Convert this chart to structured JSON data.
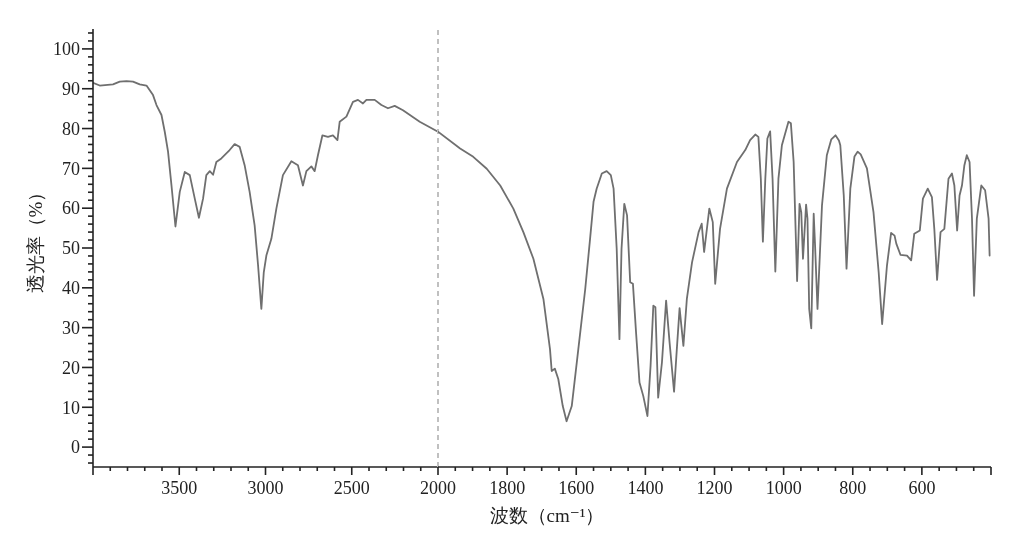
{
  "chart_data": [
    {
      "type": "line",
      "ylabel": "透光率（%）",
      "x": [
        4000,
        3961,
        3884,
        3845,
        3806,
        3768,
        3729,
        3690,
        3652,
        3632,
        3603,
        3584,
        3565,
        3545,
        3522,
        3497,
        3468,
        3439,
        3410,
        3386,
        3362,
        3343,
        3323,
        3304,
        3285,
        3256,
        3208,
        3179,
        3150,
        3121,
        3092,
        3063,
        3043,
        3024,
        3010,
        2995,
        2966,
        2937,
        2899,
        2850,
        2812,
        2783,
        2763,
        2734,
        2715,
        2696,
        2670,
        2638,
        2609,
        2583,
        2570,
        2531,
        2493,
        2464,
        2435,
        2415,
        2367,
        2328,
        2290,
        2251,
        2203,
        2106,
        2000
      ],
      "series": [
        {
          "color": "#6f6f6f",
          "values": [
            91.5,
            90.8,
            91.1,
            91.8,
            91.9,
            91.8,
            91.1,
            90.8,
            88.4,
            85.9,
            83.4,
            79.2,
            74.2,
            65.7,
            55.4,
            64.1,
            69.1,
            68.3,
            62.4,
            57.6,
            62.4,
            68.3,
            69.3,
            68.4,
            71.6,
            72.5,
            74.6,
            76.1,
            75.4,
            70.8,
            64.1,
            55.7,
            45.6,
            34.7,
            43.9,
            48.1,
            52.3,
            59.9,
            68.3,
            71.8,
            70.8,
            65.7,
            69.3,
            70.5,
            69.3,
            73.3,
            78.3,
            77.9,
            78.3,
            77.1,
            81.7,
            83.0,
            86.7,
            87.2,
            86.3,
            87.2,
            87.2,
            85.9,
            85.1,
            85.7,
            84.6,
            81.7,
            79.2
          ]
        }
      ],
      "xlim": [
        4000,
        2000
      ],
      "xticks": [
        {
          "value": 4000,
          "label": null
        },
        {
          "value": 3900,
          "label": null
        },
        {
          "value": 3800,
          "label": null
        },
        {
          "value": 3700,
          "label": null
        },
        {
          "value": 3600,
          "label": null
        },
        3500,
        {
          "value": 3400,
          "label": null
        },
        {
          "value": 3300,
          "label": null
        },
        {
          "value": 3200,
          "label": null
        },
        {
          "value": 3100,
          "label": null
        },
        3000,
        {
          "value": 2900,
          "label": null
        },
        {
          "value": 2800,
          "label": null
        },
        {
          "value": 2700,
          "label": null
        },
        {
          "value": 2600,
          "label": null
        },
        2500,
        {
          "value": 2400,
          "label": null
        },
        {
          "value": 2300,
          "label": null
        },
        {
          "value": 2200,
          "label": null
        },
        {
          "value": 2100,
          "label": null
        },
        2000
      ],
      "ylim": [
        -5,
        105
      ],
      "yticks": [
        {
          "value": -4,
          "label": null
        },
        {
          "value": -2,
          "label": null
        },
        0,
        {
          "value": 2,
          "label": null
        },
        {
          "value": 4,
          "label": null
        },
        {
          "value": 6,
          "label": null
        },
        {
          "value": 8,
          "label": null
        },
        10,
        {
          "value": 12,
          "label": null
        },
        {
          "value": 14,
          "label": null
        },
        {
          "value": 16,
          "label": null
        },
        {
          "value": 18,
          "label": null
        },
        20,
        {
          "value": 22,
          "label": null
        },
        {
          "value": 24,
          "label": null
        },
        {
          "value": 26,
          "label": null
        },
        {
          "value": 28,
          "label": null
        },
        30,
        {
          "value": 32,
          "label": null
        },
        {
          "value": 34,
          "label": null
        },
        {
          "value": 36,
          "label": null
        },
        {
          "value": 38,
          "label": null
        },
        40,
        {
          "value": 42,
          "label": null
        },
        {
          "value": 44,
          "label": null
        },
        {
          "value": 46,
          "label": null
        },
        {
          "value": 48,
          "label": null
        },
        50,
        {
          "value": 52,
          "label": null
        },
        {
          "value": 54,
          "label": null
        },
        {
          "value": 56,
          "label": null
        },
        {
          "value": 58,
          "label": null
        },
        60,
        {
          "value": 62,
          "label": null
        },
        {
          "value": 64,
          "label": null
        },
        {
          "value": 66,
          "label": null
        },
        {
          "value": 68,
          "label": null
        },
        70,
        {
          "value": 72,
          "label": null
        },
        {
          "value": 74,
          "label": null
        },
        {
          "value": 76,
          "label": null
        },
        {
          "value": 78,
          "label": null
        },
        80,
        {
          "value": 82,
          "label": null
        },
        {
          "value": 84,
          "label": null
        },
        {
          "value": 86,
          "label": null
        },
        {
          "value": 88,
          "label": null
        },
        90,
        {
          "value": 92,
          "label": null
        },
        {
          "value": 94,
          "label": null
        },
        {
          "value": 96,
          "label": null
        },
        {
          "value": 98,
          "label": null
        },
        100,
        {
          "value": 102,
          "label": null
        },
        {
          "value": 104,
          "label": null
        }
      ]
    },
    {
      "type": "line",
      "xlabel": "波数（cm⁻¹）",
      "tick_labels": "x",
      "x": [
        2000,
        1936,
        1898,
        1859,
        1820,
        1782,
        1753,
        1724,
        1695,
        1676,
        1671,
        1662,
        1652,
        1639,
        1628,
        1613,
        1594,
        1574,
        1560,
        1550,
        1541,
        1526,
        1512,
        1500,
        1492,
        1483,
        1475,
        1469,
        1461,
        1453,
        1444,
        1436,
        1427,
        1417,
        1406,
        1394,
        1385,
        1377,
        1371,
        1363,
        1352,
        1340,
        1330,
        1317,
        1309,
        1301,
        1290,
        1280,
        1265,
        1246,
        1237,
        1230,
        1215,
        1205,
        1198,
        1184,
        1164,
        1135,
        1111,
        1097,
        1082,
        1073,
        1066,
        1060,
        1053,
        1047,
        1039,
        1032,
        1024,
        1015,
        1005,
        986,
        979,
        971,
        961,
        954,
        949,
        944,
        935,
        931,
        926,
        920,
        913,
        909,
        902,
        889,
        875,
        862,
        850,
        840,
        836,
        826,
        818,
        807,
        795,
        786,
        777,
        759,
        740,
        725,
        715,
        701,
        689,
        679,
        674,
        662,
        643,
        631,
        622,
        606,
        597,
        583,
        571,
        564,
        556,
        546,
        535,
        523,
        513,
        506,
        498,
        491,
        484,
        477,
        470,
        462,
        455,
        449,
        441,
        428,
        417,
        407,
        404
      ],
      "series": [
        {
          "color": "#6f6f6f",
          "values": [
            79.2,
            75.0,
            72.9,
            69.9,
            65.7,
            59.9,
            54.0,
            47.3,
            37.2,
            24.6,
            19.1,
            19.7,
            17.1,
            10.3,
            6.5,
            10.3,
            24.6,
            39.7,
            52.3,
            61.6,
            64.9,
            68.7,
            69.3,
            68.3,
            64.9,
            49.8,
            27.1,
            49.8,
            61.1,
            58.2,
            41.4,
            41.0,
            28.8,
            16.2,
            12.8,
            7.8,
            20.4,
            35.5,
            35.1,
            12.4,
            21.3,
            36.8,
            26.3,
            13.9,
            24.6,
            34.9,
            25.4,
            37.2,
            46.4,
            54.0,
            56.1,
            49.0,
            59.9,
            56.5,
            41.0,
            54.8,
            64.9,
            71.6,
            74.6,
            77.1,
            78.5,
            77.9,
            67.4,
            51.6,
            67.4,
            77.5,
            79.3,
            67.4,
            44.1,
            67.4,
            75.8,
            81.7,
            81.3,
            71.6,
            41.7,
            61.1,
            59.0,
            47.3,
            60.9,
            57.4,
            34.7,
            29.8,
            58.6,
            50.6,
            34.7,
            60.7,
            73.3,
            77.3,
            78.3,
            77.0,
            75.8,
            63.2,
            44.8,
            64.9,
            73.0,
            74.2,
            73.5,
            70.0,
            59.0,
            43.9,
            30.9,
            45.6,
            53.8,
            53.1,
            51.1,
            48.3,
            48.1,
            46.9,
            53.6,
            54.4,
            62.4,
            64.9,
            62.8,
            54.8,
            42.0,
            54.0,
            54.8,
            67.4,
            68.7,
            65.7,
            54.4,
            63.2,
            65.7,
            70.8,
            73.3,
            71.6,
            57.4,
            38.0,
            57.4,
            65.7,
            64.5,
            57.4,
            48.1
          ]
        }
      ],
      "xlim": [
        2000,
        400
      ],
      "xticks": [
        {
          "value": 1950,
          "label": null
        },
        {
          "value": 1900,
          "label": null
        },
        {
          "value": 1850,
          "label": null
        },
        1800,
        {
          "value": 1750,
          "label": null
        },
        {
          "value": 1700,
          "label": null
        },
        {
          "value": 1650,
          "label": null
        },
        1600,
        {
          "value": 1550,
          "label": null
        },
        {
          "value": 1500,
          "label": null
        },
        {
          "value": 1450,
          "label": null
        },
        1400,
        {
          "value": 1350,
          "label": null
        },
        {
          "value": 1300,
          "label": null
        },
        {
          "value": 1250,
          "label": null
        },
        1200,
        {
          "value": 1150,
          "label": null
        },
        {
          "value": 1100,
          "label": null
        },
        {
          "value": 1050,
          "label": null
        },
        1000,
        {
          "value": 950,
          "label": null
        },
        {
          "value": 900,
          "label": null
        },
        {
          "value": 850,
          "label": null
        },
        800,
        {
          "value": 750,
          "label": null
        },
        {
          "value": 700,
          "label": null
        },
        {
          "value": 650,
          "label": null
        },
        600,
        {
          "value": 550,
          "label": null
        },
        {
          "value": 500,
          "label": null
        },
        {
          "value": 450,
          "label": null
        },
        {
          "value": 400,
          "label": null
        }
      ],
      "ylim": [
        -5,
        105
      ],
      "ref_lines": [
        {
          "axis": "x",
          "value": 2000,
          "color": "#c0c0c0",
          "line_style": "dashed"
        }
      ]
    }
  ]
}
